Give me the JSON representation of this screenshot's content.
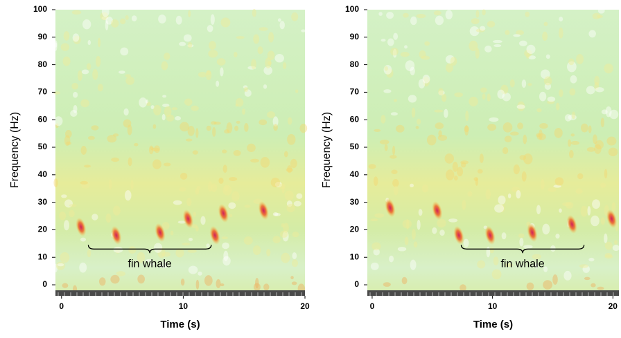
{
  "chart_data": [
    {
      "type": "spectrogram",
      "x_label": "Time (s)",
      "y_label": "Frequency (Hz)",
      "xlim": [
        -0.5,
        20
      ],
      "xticks": [
        0,
        10,
        20
      ],
      "ylim": [
        -2,
        100
      ],
      "yticks": [
        0,
        10,
        20,
        30,
        40,
        50,
        60,
        70,
        80,
        90,
        100
      ],
      "calls": {
        "x": [
          1.6,
          4.5,
          8.1,
          10.4,
          12.6,
          13.3,
          16.6
        ],
        "y": [
          21,
          18,
          19,
          24,
          18,
          26,
          27
        ]
      },
      "annotation": {
        "text": "fin whale",
        "x": [
          2.2,
          12.3
        ],
        "y": 13
      }
    },
    {
      "type": "spectrogram",
      "x_label": "Time (s)",
      "y_label": "Frequency (Hz)",
      "xlim": [
        -0.4,
        20.5
      ],
      "xticks": [
        0,
        10,
        20
      ],
      "ylim": [
        -2,
        100
      ],
      "yticks": [
        0,
        10,
        20,
        30,
        40,
        50,
        60,
        70,
        80,
        90,
        100
      ],
      "calls": {
        "x": [
          1.5,
          5.4,
          7.2,
          9.8,
          13.3,
          16.6,
          19.9
        ],
        "y": [
          28,
          27,
          18,
          18,
          19,
          22,
          24
        ]
      },
      "annotation": {
        "text": "fin whale",
        "x": [
          7.4,
          17.6
        ],
        "y": 13
      }
    }
  ]
}
